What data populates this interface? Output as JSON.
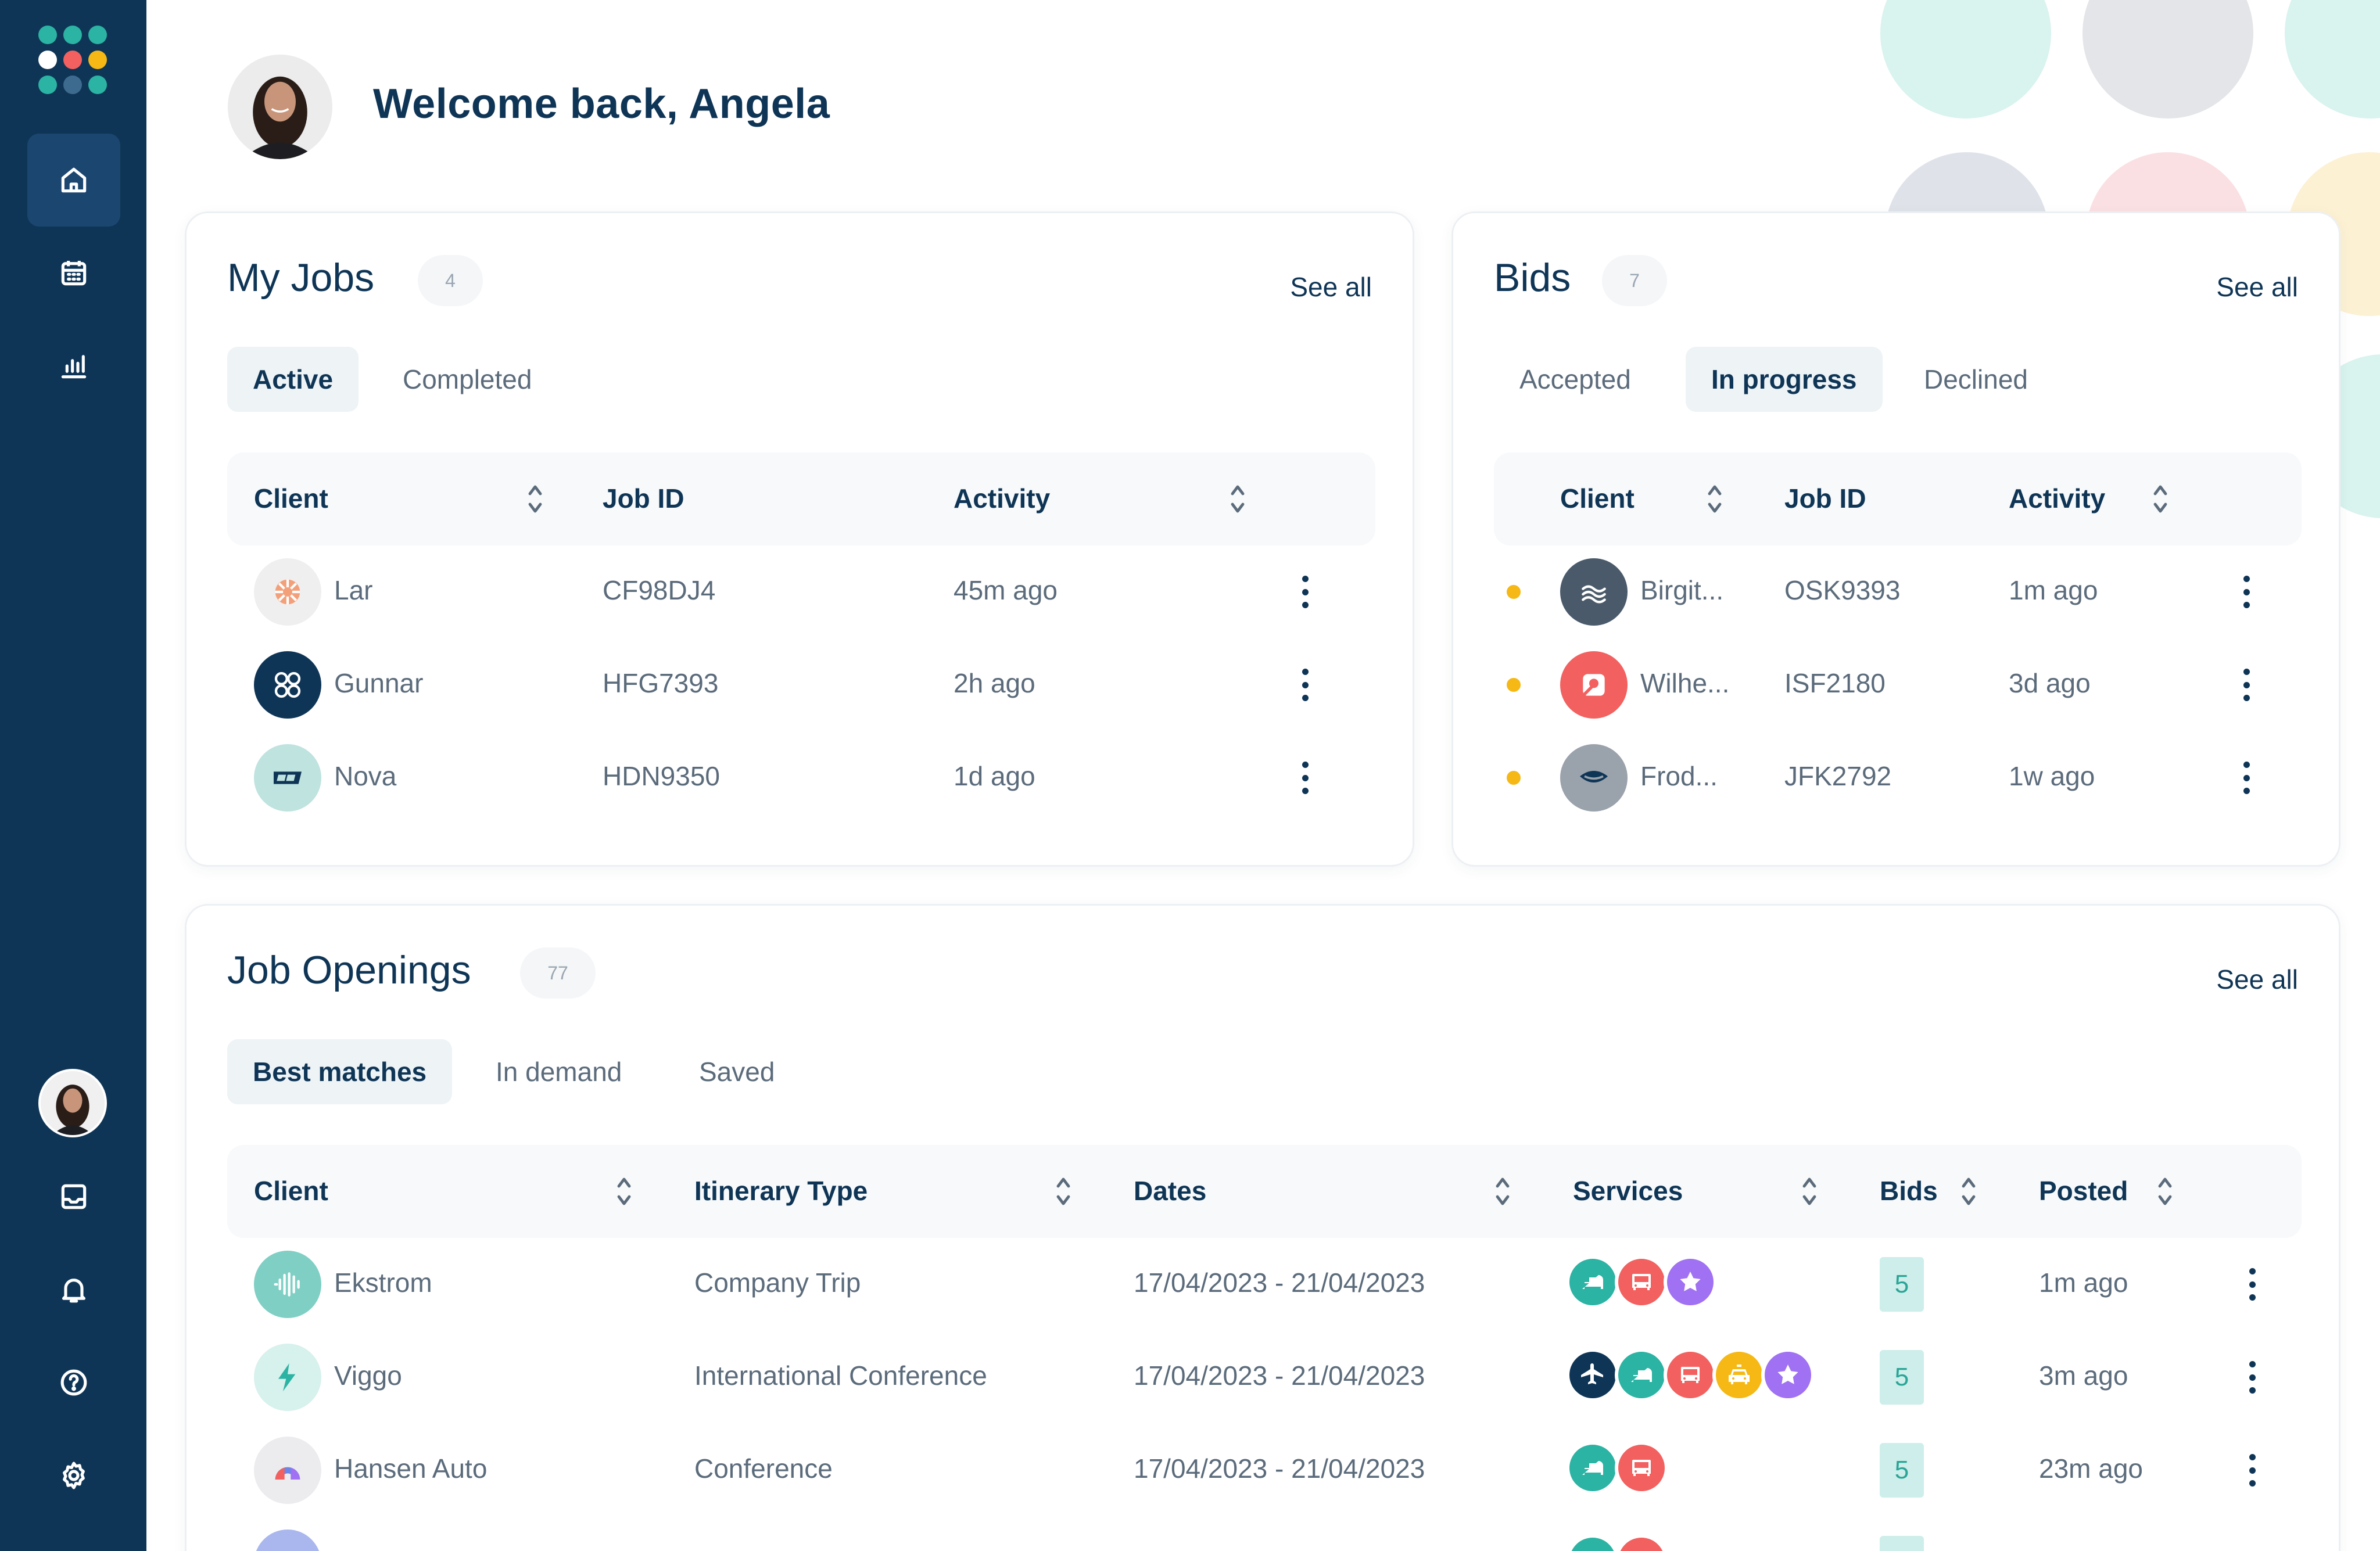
{
  "user": {
    "name": "Angela",
    "welcome": "Welcome back, Angela"
  },
  "colors": {
    "sidebar": "#0f3556",
    "teal": "#2bb3a3",
    "coral": "#f2605f",
    "purple": "#a071f2",
    "yellow": "#f5b814",
    "navy": "#0f3556"
  },
  "sidebar": {
    "nav": [
      {
        "icon": "home-icon",
        "active": true
      },
      {
        "icon": "calendar-icon",
        "active": false
      },
      {
        "icon": "chart-icon",
        "active": false
      }
    ],
    "bottom": [
      {
        "icon": "inbox-icon"
      },
      {
        "icon": "bell-icon"
      },
      {
        "icon": "help-icon"
      },
      {
        "icon": "gear-icon"
      }
    ]
  },
  "my_jobs": {
    "title": "My Jobs",
    "count": "4",
    "see_all": "See all",
    "tabs": [
      {
        "label": "Active",
        "active": true
      },
      {
        "label": "Completed",
        "active": false
      }
    ],
    "columns": [
      "Client",
      "Job ID",
      "Activity"
    ],
    "rows": [
      {
        "client": "Lar",
        "job_id": "CF98DJ4",
        "activity": "45m ago"
      },
      {
        "client": "Gunnar",
        "job_id": "HFG7393",
        "activity": "2h ago"
      },
      {
        "client": "Nova",
        "job_id": "HDN9350",
        "activity": "1d ago"
      }
    ]
  },
  "bids": {
    "title": "Bids",
    "count": "7",
    "see_all": "See all",
    "tabs": [
      {
        "label": "Accepted",
        "active": false
      },
      {
        "label": "In progress",
        "active": true
      },
      {
        "label": "Declined",
        "active": false
      }
    ],
    "columns": [
      "Client",
      "Job ID",
      "Activity"
    ],
    "rows": [
      {
        "client": "Birgit...",
        "job_id": "OSK9393",
        "activity": "1m ago"
      },
      {
        "client": "Wilhe...",
        "job_id": "ISF2180",
        "activity": "3d ago"
      },
      {
        "client": "Frod...",
        "job_id": "JFK2792",
        "activity": "1w ago"
      }
    ]
  },
  "job_openings": {
    "title": "Job Openings",
    "count": "77",
    "see_all": "See all",
    "tabs": [
      {
        "label": "Best matches",
        "active": true
      },
      {
        "label": "In demand",
        "active": false
      },
      {
        "label": "Saved",
        "active": false
      }
    ],
    "columns": [
      "Client",
      "Itinerary Type",
      "Dates",
      "Services",
      "Bids",
      "Posted"
    ],
    "rows": [
      {
        "client": "Ekstrom",
        "itinerary": "Company Trip",
        "dates": "17/04/2023 - 21/04/2023",
        "services": [
          "bed-icon",
          "bus-icon",
          "star-icon"
        ],
        "bids": "5",
        "posted": "1m ago"
      },
      {
        "client": "Viggo",
        "itinerary": "International Conference",
        "dates": "17/04/2023 - 21/04/2023",
        "services": [
          "plane-icon",
          "bed-icon",
          "bus-icon",
          "car-icon",
          "star-icon"
        ],
        "bids": "5",
        "posted": "3m ago"
      },
      {
        "client": "Hansen Auto",
        "itinerary": "Conference",
        "dates": "17/04/2023 - 21/04/2023",
        "services": [
          "bed-icon",
          "bus-icon"
        ],
        "bids": "5",
        "posted": "23m ago"
      }
    ]
  }
}
